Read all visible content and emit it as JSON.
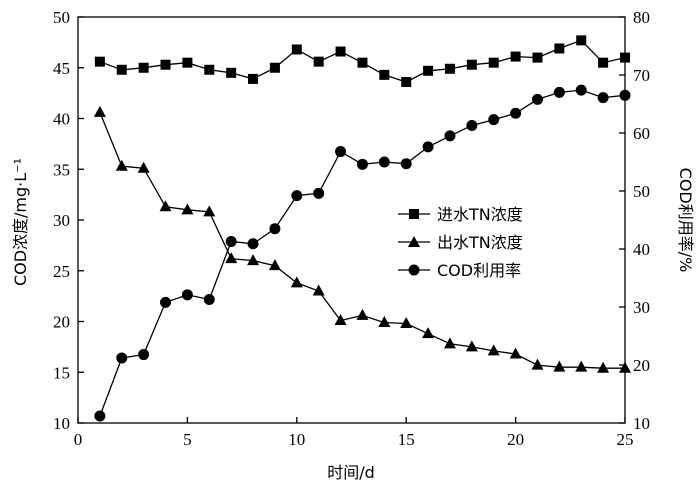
{
  "chart_data": {
    "type": "line",
    "xlabel": "时间/d",
    "ylabel_left": "COD浓度/mg·L⁻¹",
    "ylabel_right": "COD利用率/%",
    "xlim": [
      0,
      25
    ],
    "ylim_left": [
      10,
      50
    ],
    "ylim_right": [
      10,
      80
    ],
    "x_ticks": [
      "0",
      "5",
      "10",
      "15",
      "20",
      "25"
    ],
    "y_left_ticks": [
      "10",
      "15",
      "20",
      "25",
      "30",
      "35",
      "40",
      "45",
      "50"
    ],
    "y_right_ticks": [
      "10",
      "20",
      "30",
      "40",
      "50",
      "60",
      "70",
      "80"
    ],
    "grid": false,
    "legend_position": "center-right",
    "x": [
      1,
      2,
      3,
      4,
      5,
      6,
      7,
      8,
      9,
      10,
      11,
      12,
      13,
      14,
      15,
      16,
      17,
      18,
      19,
      20,
      21,
      22,
      23,
      24,
      25
    ],
    "series": [
      {
        "name": "进水TN浓度",
        "axis": "left",
        "marker": "square",
        "values": [
          45.6,
          44.8,
          45.0,
          45.3,
          45.5,
          44.8,
          44.5,
          43.9,
          45.0,
          46.8,
          45.6,
          46.6,
          45.5,
          44.3,
          43.6,
          44.7,
          44.9,
          45.3,
          45.5,
          46.1,
          46.0,
          46.9,
          47.7,
          45.5,
          46.0
        ]
      },
      {
        "name": "出水TN浓度",
        "axis": "left",
        "marker": "triangle",
        "values": [
          40.6,
          35.3,
          35.1,
          31.3,
          31.0,
          30.8,
          26.2,
          26.0,
          25.5,
          23.8,
          23.0,
          20.1,
          20.6,
          19.9,
          19.8,
          18.8,
          17.8,
          17.5,
          17.1,
          16.8,
          15.7,
          15.5,
          15.5,
          15.4,
          15.4
        ]
      },
      {
        "name": "COD利用率",
        "axis": "right",
        "marker": "circle",
        "values": [
          11.2,
          21.2,
          21.8,
          30.8,
          32.1,
          31.3,
          41.3,
          40.9,
          43.5,
          49.2,
          49.6,
          56.8,
          54.6,
          55.0,
          54.7,
          57.6,
          59.5,
          61.3,
          62.3,
          63.4,
          65.8,
          67.0,
          67.4,
          66.1,
          66.5
        ]
      }
    ]
  }
}
